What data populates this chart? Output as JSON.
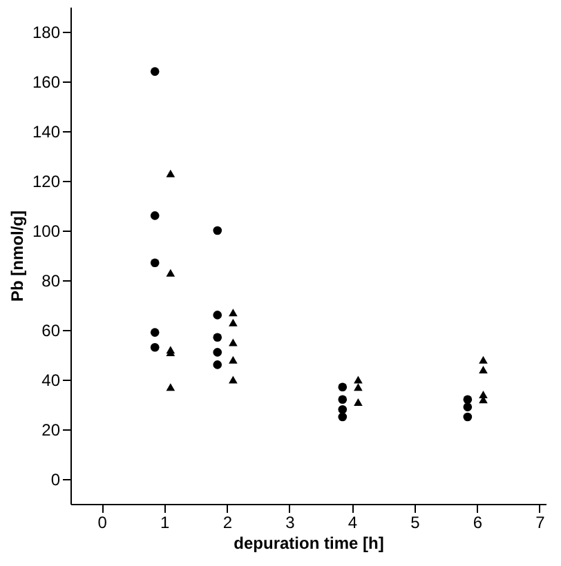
{
  "chart_data": {
    "type": "scatter",
    "xlabel": "depuration time [h]",
    "ylabel": "Pb [nmol/g]",
    "xlim": [
      -0.5,
      7.1
    ],
    "xticks": [
      0,
      1,
      2,
      3,
      4,
      5,
      6,
      7
    ],
    "ylim": [
      -10,
      190
    ],
    "yticks": [
      0,
      20,
      40,
      60,
      80,
      100,
      120,
      140,
      160,
      180
    ],
    "grid": false,
    "series": [
      {
        "color": "#000000",
        "marker": "circle",
        "x": [
          0.85,
          0.85,
          0.85,
          0.85,
          0.85,
          1.85,
          1.85,
          1.85,
          1.85,
          1.85,
          3.85,
          3.85,
          3.85,
          3.85,
          5.85,
          5.85,
          5.85
        ],
        "values": [
          164,
          106,
          87,
          59,
          53,
          100,
          66,
          57,
          51,
          46,
          37,
          32,
          28,
          25,
          32,
          29,
          25
        ]
      },
      {
        "color": "#000000",
        "marker": "triangle",
        "x": [
          1.1,
          1.1,
          1.1,
          1.1,
          1.1,
          2.1,
          2.1,
          2.1,
          2.1,
          2.1,
          4.1,
          4.1,
          4.1,
          6.1,
          6.1,
          6.1,
          6.1
        ],
        "values": [
          123,
          83,
          52,
          51,
          37,
          67,
          63,
          55,
          48,
          40,
          40,
          37,
          31,
          48,
          44,
          34,
          32
        ]
      }
    ]
  }
}
